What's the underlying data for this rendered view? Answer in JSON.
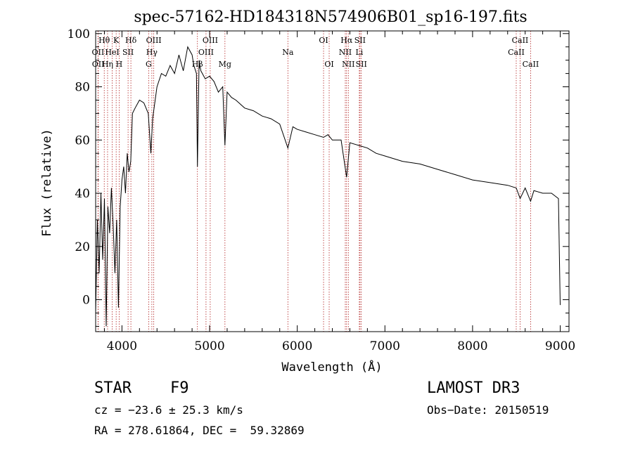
{
  "chart_data": {
    "type": "line",
    "title": "spec-57162-HD184318N574906B01_sp16-197.fits",
    "xlabel": "Wavelength (Å)",
    "ylabel": "Flux (relative)",
    "xlim": [
      3700,
      9100
    ],
    "ylim": [
      -12,
      101
    ],
    "xticks": [
      4000,
      5000,
      6000,
      7000,
      8000,
      9000
    ],
    "yticks": [
      0,
      20,
      40,
      60,
      80,
      100
    ],
    "series": [
      {
        "name": "flux",
        "x": [
          3700,
          3720,
          3740,
          3760,
          3780,
          3800,
          3820,
          3840,
          3860,
          3880,
          3900,
          3920,
          3940,
          3960,
          3980,
          4000,
          4020,
          4040,
          4060,
          4080,
          4100,
          4120,
          4150,
          4200,
          4250,
          4300,
          4330,
          4350,
          4400,
          4450,
          4500,
          4550,
          4600,
          4650,
          4700,
          4750,
          4800,
          4820,
          4850,
          4861,
          4880,
          4900,
          4950,
          5000,
          5050,
          5100,
          5150,
          5175,
          5200,
          5250,
          5300,
          5400,
          5500,
          5600,
          5700,
          5800,
          5893,
          5950,
          6000,
          6100,
          6200,
          6300,
          6350,
          6400,
          6500,
          6563,
          6600,
          6700,
          6800,
          6900,
          7000,
          7200,
          7400,
          7600,
          7800,
          8000,
          8200,
          8400,
          8498,
          8542,
          8600,
          8662,
          8700,
          8800,
          8900,
          8980,
          9000
        ],
        "y": [
          -5,
          30,
          10,
          40,
          15,
          38,
          -10,
          35,
          25,
          42,
          28,
          10,
          30,
          -3,
          35,
          45,
          50,
          40,
          55,
          48,
          52,
          70,
          72,
          75,
          74,
          70,
          55,
          68,
          80,
          85,
          84,
          88,
          85,
          92,
          86,
          95,
          92,
          88,
          85,
          50,
          90,
          86,
          83,
          84,
          82,
          78,
          80,
          58,
          78,
          76,
          75,
          72,
          71,
          69,
          68,
          66,
          57,
          65,
          64,
          63,
          62,
          61,
          62,
          60,
          60,
          46,
          59,
          58,
          57,
          55,
          54,
          52,
          51,
          49,
          47,
          45,
          44,
          43,
          42,
          38,
          42,
          37,
          41,
          40,
          40,
          38,
          -2
        ]
      }
    ],
    "lines": [
      {
        "label": "Hθ",
        "wave": 3798,
        "row": 0
      },
      {
        "label": "OII",
        "wave": 3727,
        "row": 1
      },
      {
        "label": "OII",
        "wave": 3729,
        "row": 2
      },
      {
        "label": "Hη",
        "wave": 3836,
        "row": 2
      },
      {
        "label": "HeI",
        "wave": 3889,
        "row": 1
      },
      {
        "label": "K",
        "wave": 3934,
        "row": 0
      },
      {
        "label": "H",
        "wave": 3968,
        "row": 2
      },
      {
        "label": "SII",
        "wave": 4070,
        "row": 1
      },
      {
        "label": "Hδ",
        "wave": 4102,
        "row": 0
      },
      {
        "label": "OIII",
        "wave": 4363,
        "row": 0
      },
      {
        "label": "Hγ",
        "wave": 4341,
        "row": 1
      },
      {
        "label": "G",
        "wave": 4305,
        "row": 2
      },
      {
        "label": "Hβ",
        "wave": 4861,
        "row": 2
      },
      {
        "label": "OIII",
        "wave": 4959,
        "row": 1
      },
      {
        "label": "OIII",
        "wave": 5007,
        "row": 0
      },
      {
        "label": "Mg",
        "wave": 5175,
        "row": 2
      },
      {
        "label": "Na",
        "wave": 5893,
        "row": 1
      },
      {
        "label": "OI",
        "wave": 6300,
        "row": 0
      },
      {
        "label": "OI",
        "wave": 6364,
        "row": 2
      },
      {
        "label": "NII",
        "wave": 6548,
        "row": 1
      },
      {
        "label": "Hα",
        "wave": 6563,
        "row": 0
      },
      {
        "label": "NII",
        "wave": 6583,
        "row": 2
      },
      {
        "label": "SII",
        "wave": 6716,
        "row": 0
      },
      {
        "label": "SII",
        "wave": 6731,
        "row": 2
      },
      {
        "label": "Li",
        "wave": 6708,
        "row": 1
      },
      {
        "label": "CaII",
        "wave": 8498,
        "row": 1
      },
      {
        "label": "CaII",
        "wave": 8542,
        "row": 0
      },
      {
        "label": "CaII",
        "wave": 8662,
        "row": 2
      }
    ]
  },
  "info": {
    "class": "STAR",
    "subclass": "F9",
    "survey": "LAMOST DR3",
    "cz": "cz = −23.6 ± 25.3 km/s",
    "obs_date": "Obs−Date: 20150519",
    "coords": "RA = 278.61864, DEC =  59.32869"
  },
  "colors": {
    "line": "#000000",
    "marker": "#b22222"
  }
}
